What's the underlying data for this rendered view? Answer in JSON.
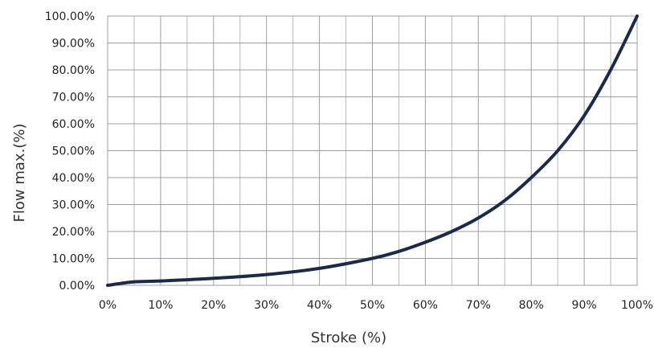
{
  "chart_data": {
    "type": "line",
    "title": "",
    "xlabel": "Stroke (%)",
    "ylabel": "Flow max.(%)",
    "xlim": [
      0,
      100
    ],
    "ylim": [
      0,
      100
    ],
    "x_ticks": [
      "0%",
      "10%",
      "20%",
      "30%",
      "40%",
      "50%",
      "60%",
      "70%",
      "80%",
      "90%",
      "100%"
    ],
    "y_ticks": [
      "0.00%",
      "10.00%",
      "20.00%",
      "30.00%",
      "40.00%",
      "50.00%",
      "60.00%",
      "70.00%",
      "80.00%",
      "90.00%",
      "100.00%"
    ],
    "grid": true,
    "legend": "none",
    "series": [
      {
        "color": "#1b2a4a",
        "x": [
          0,
          5,
          10,
          20,
          30,
          40,
          50,
          55,
          60,
          65,
          70,
          75,
          80,
          85,
          90,
          95,
          100
        ],
        "y": [
          0,
          1.3,
          1.6,
          2.6,
          4.0,
          6.3,
          10.0,
          12.6,
          16.0,
          20.0,
          25.0,
          31.5,
          40.0,
          50.0,
          63.0,
          80.0,
          100.0
        ]
      }
    ]
  }
}
